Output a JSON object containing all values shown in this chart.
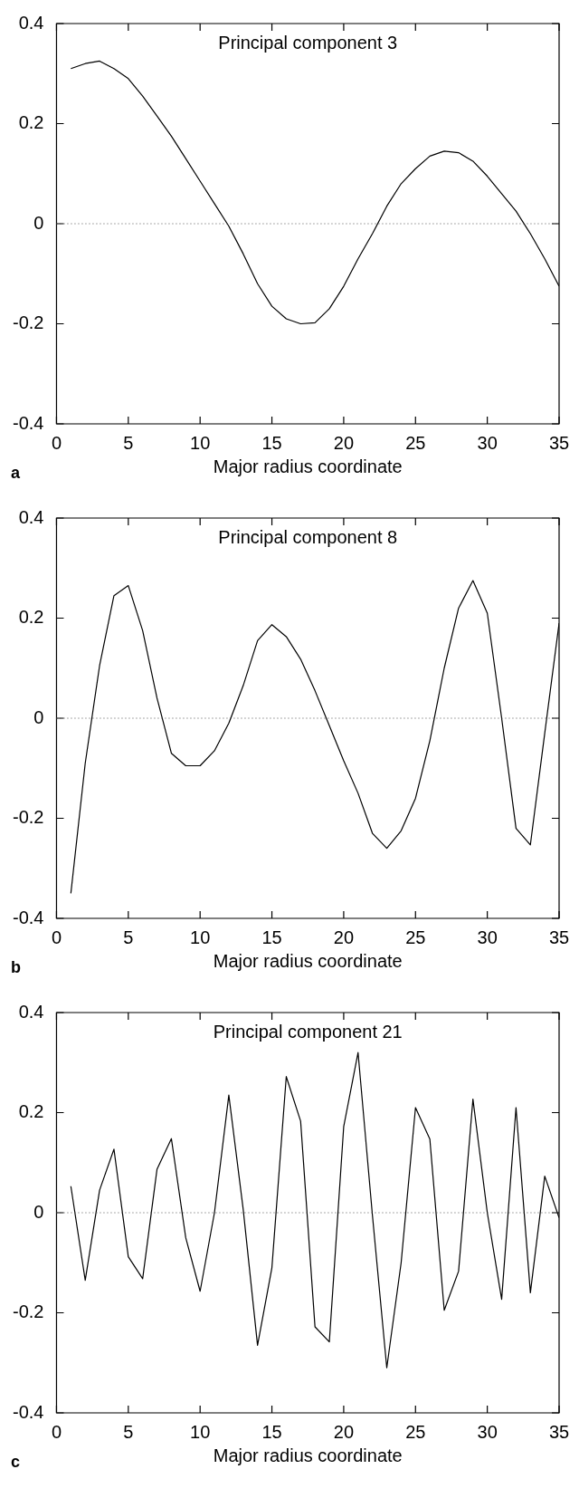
{
  "chart_data": [
    {
      "type": "line",
      "title": "Principal component 3",
      "xlabel": "Major radius coordinate",
      "color": "#000000",
      "x": [
        1,
        2,
        3,
        4,
        5,
        6,
        7,
        8,
        9,
        10,
        11,
        12,
        13,
        14,
        15,
        16,
        17,
        18,
        19,
        20,
        21,
        22,
        23,
        24,
        25,
        26,
        27,
        28,
        29,
        30,
        31,
        32,
        33,
        34,
        35
      ],
      "values": [
        0.31,
        0.32,
        0.325,
        0.31,
        0.29,
        0.255,
        0.215,
        0.175,
        0.13,
        0.085,
        0.04,
        -0.005,
        -0.06,
        -0.12,
        -0.165,
        -0.19,
        -0.2,
        -0.198,
        -0.17,
        -0.125,
        -0.07,
        -0.02,
        0.035,
        0.08,
        0.11,
        0.135,
        0.145,
        0.142,
        0.125,
        0.095,
        0.06,
        0.025,
        -0.02,
        -0.07,
        -0.125
      ],
      "xlim": [
        0,
        35
      ],
      "xticks": [
        0,
        5,
        10,
        15,
        20,
        25,
        30,
        35
      ],
      "ylim": [
        -0.4,
        0.4
      ],
      "yticks": [
        -0.4,
        -0.2,
        0,
        0.2,
        0.4
      ],
      "ref_lines": [
        {
          "axis": "y",
          "value": 0,
          "line_style": "dotted"
        }
      ],
      "annotations": [
        "a"
      ]
    },
    {
      "type": "line",
      "title": "Principal component 8",
      "xlabel": "Major radius coordinate",
      "color": "#000000",
      "x": [
        1,
        2,
        3,
        4,
        5,
        6,
        7,
        8,
        9,
        10,
        11,
        12,
        13,
        14,
        15,
        16,
        17,
        18,
        19,
        20,
        21,
        22,
        23,
        24,
        25,
        26,
        27,
        28,
        29,
        30,
        31,
        32,
        33,
        34,
        35
      ],
      "values": [
        -0.35,
        -0.09,
        0.105,
        0.245,
        0.265,
        0.175,
        0.04,
        -0.07,
        -0.095,
        -0.095,
        -0.065,
        -0.01,
        0.065,
        0.155,
        0.187,
        0.163,
        0.118,
        0.055,
        -0.015,
        -0.085,
        -0.15,
        -0.23,
        -0.26,
        -0.225,
        -0.16,
        -0.045,
        0.1,
        0.22,
        0.275,
        0.21,
        0.0,
        -0.22,
        -0.253,
        -0.03,
        0.19
      ],
      "xlim": [
        0,
        35
      ],
      "xticks": [
        0,
        5,
        10,
        15,
        20,
        25,
        30,
        35
      ],
      "ylim": [
        -0.4,
        0.4
      ],
      "yticks": [
        -0.4,
        -0.2,
        0,
        0.2,
        0.4
      ],
      "ref_lines": [
        {
          "axis": "y",
          "value": 0,
          "line_style": "dotted"
        }
      ],
      "annotations": [
        "b"
      ]
    },
    {
      "type": "line",
      "title": "Principal component 21",
      "xlabel": "Major radius coordinate",
      "color": "#000000",
      "x": [
        1,
        2,
        3,
        4,
        5,
        6,
        7,
        8,
        9,
        10,
        11,
        12,
        13,
        14,
        15,
        16,
        17,
        18,
        19,
        20,
        21,
        22,
        23,
        24,
        25,
        26,
        27,
        28,
        29,
        30,
        31,
        32,
        33,
        34,
        35
      ],
      "values": [
        0.053,
        -0.135,
        0.045,
        0.127,
        -0.088,
        -0.132,
        0.087,
        0.148,
        -0.05,
        -0.157,
        0.0,
        0.235,
        0.007,
        -0.265,
        -0.11,
        0.272,
        0.183,
        -0.228,
        -0.258,
        0.172,
        0.32,
        -0.005,
        -0.31,
        -0.1,
        0.21,
        0.147,
        -0.195,
        -0.117,
        0.227,
        0.0,
        -0.173,
        0.21,
        -0.16,
        0.073,
        -0.01
      ],
      "xlim": [
        0,
        35
      ],
      "xticks": [
        0,
        5,
        10,
        15,
        20,
        25,
        30,
        35
      ],
      "ylim": [
        -0.4,
        0.4
      ],
      "yticks": [
        -0.4,
        -0.2,
        0,
        0.2,
        0.4
      ],
      "ref_lines": [
        {
          "axis": "y",
          "value": 0,
          "line_style": "dotted"
        }
      ],
      "annotations": [
        "c"
      ]
    }
  ]
}
